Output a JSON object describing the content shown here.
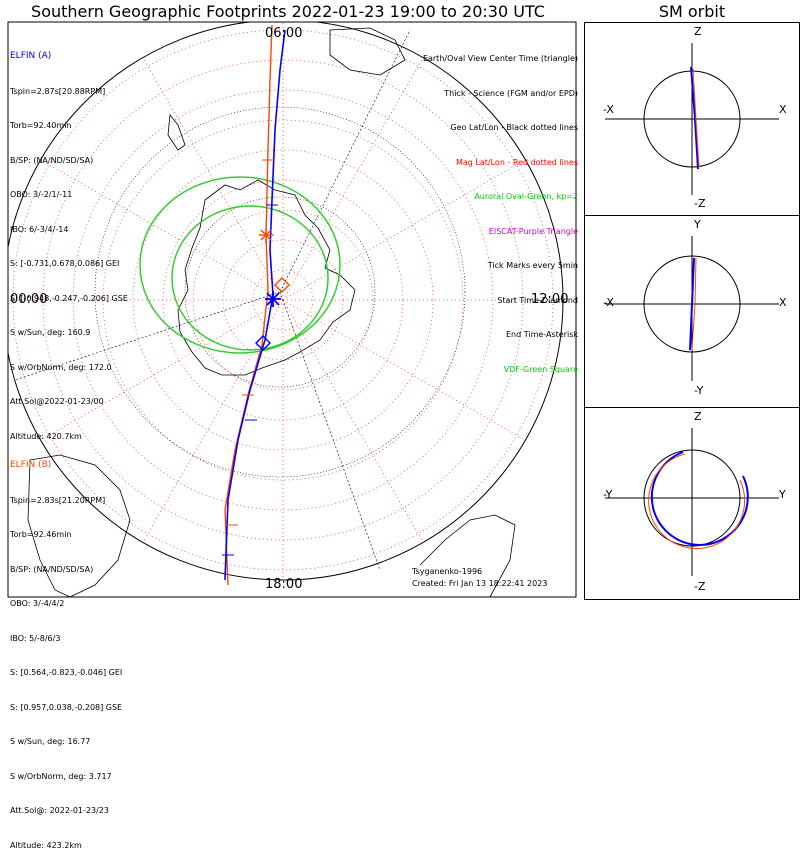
{
  "title": "Southern Geographic Footprints 2022-01-23 19:00 to 20:30 UTC",
  "sm_title": "SM orbit",
  "time_labels": {
    "top": "06:00",
    "left": "00:00",
    "right": "12:00",
    "bottom": "18:00"
  },
  "elfin_a": {
    "name": "ELFIN (A)",
    "color": "#0000ff",
    "lines": [
      "Tspin=2.87s[20.88RPM]",
      "Torb=92.40min",
      "B/SP: (NA/ND/SD/SA)",
      "OBO: 3/-2/1/-11",
      "IBO: 6/-3/4/-14",
      "S: [-0.731,0.678,0.086] GEI",
      "S: [-0.948,-0.247,-0.206] GSE",
      "S w/Sun, deg: 160.9",
      "S w/OrbNorm, deg: 172.0",
      "Att.Sol@2022-01-23/00",
      "Altitude: 420.7km"
    ]
  },
  "elfin_b": {
    "name": "ELFIN (B)",
    "color": "#ff4500",
    "lines": [
      "Tspin=2.83s[21.20RPM]",
      "Torb=92.46min",
      "B/SP: (NA/ND/SD/SA)",
      "OBO: 3/-4/4/2",
      "IBO: 5/-8/6/3",
      "S: [0.564,-0.823,-0.046] GEI",
      "S: [0.957,0.038,-0.208] GSE",
      "S w/Sun, deg: 16.77",
      "S w/OrbNorm, deg: 3.717",
      "Att.Sol@: 2022-01-23/23",
      "Altitude: 423.2km"
    ]
  },
  "legend": [
    {
      "text": "Earth/Oval View Center Time (triangle)",
      "color": "#000000"
    },
    {
      "text": "Thick - Science (FGM and/or EPD)",
      "color": "#000000"
    },
    {
      "text": "Geo Lat/Lon - Black dotted lines",
      "color": "#000000"
    },
    {
      "text": "Mag Lat/Lon - Red dotted lines",
      "color": "#ff0000"
    },
    {
      "text": "Auroral Oval-Green, kp=2",
      "color": "#00cc00"
    },
    {
      "text": "EISCAT-Purple Triangle",
      "color": "#cc00cc"
    },
    {
      "text": "Tick Marks every 5min",
      "color": "#000000"
    },
    {
      "text": "Start Time-Diamond",
      "color": "#000000"
    },
    {
      "text": "End Time-Asterisk",
      "color": "#000000"
    },
    {
      "text": "VDF-Green Square",
      "color": "#00cc00"
    }
  ],
  "footer": {
    "model": "Tsyganenko-1996",
    "created": "Created: Fri Jan 13 18:22:41 2023"
  },
  "sm_panels": [
    {
      "top": "Z",
      "bottom": "-Z",
      "left": "-X",
      "right": "X"
    },
    {
      "top": "Y",
      "bottom": "-Y",
      "left": "-X",
      "right": "X"
    },
    {
      "top": "Z",
      "bottom": "-Z",
      "left": "-Y",
      "right": "Y"
    }
  ]
}
